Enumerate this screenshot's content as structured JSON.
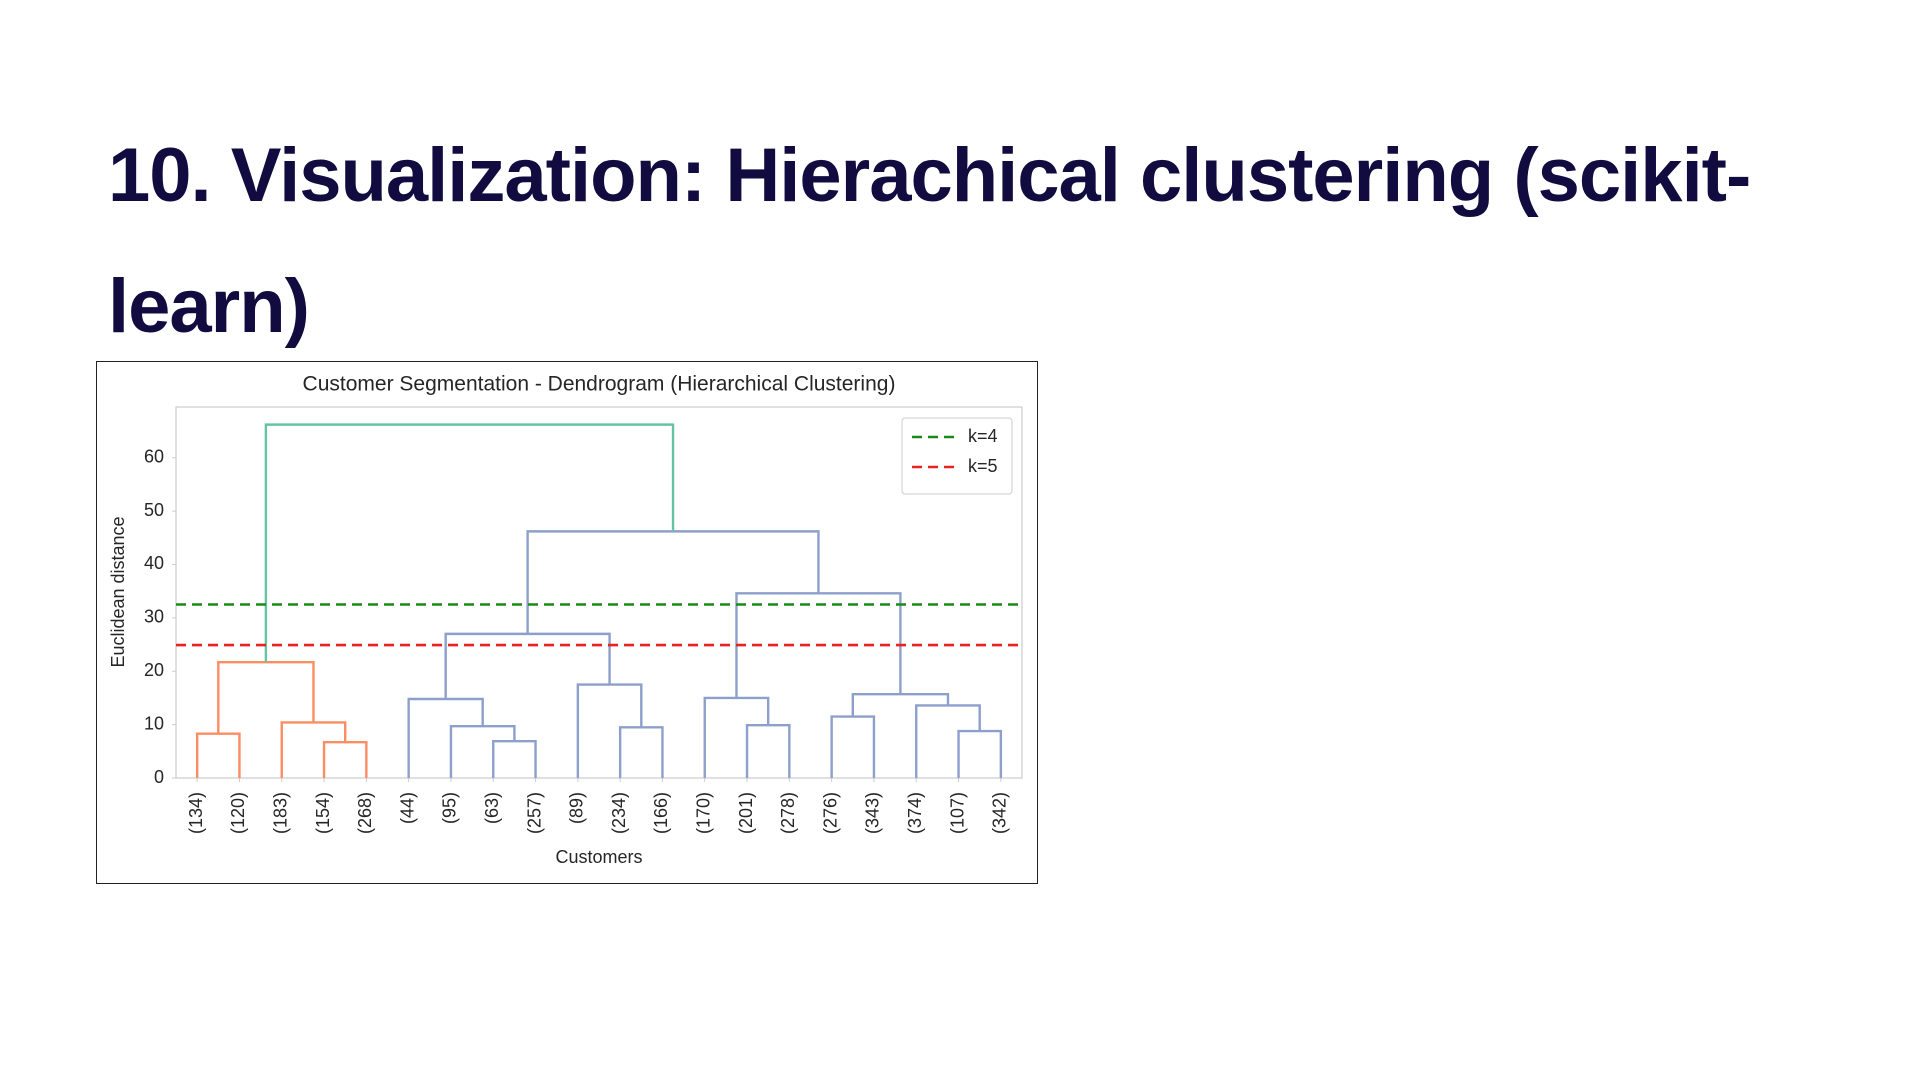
{
  "title": "10. Visualization: Hierachical clustering (scikit-learn)",
  "chart_data": {
    "type": "dendrogram",
    "title": "Customer Segmentation - Dendrogram (Hierarchical Clustering)",
    "x_label": "Customers",
    "y_label": "Euclidean distance",
    "ylim": [
      0,
      69.5
    ],
    "yticks": [
      0,
      10,
      20,
      30,
      40,
      50,
      60
    ],
    "legend": "upper right",
    "thresholds": [
      {
        "name": "k=4",
        "value": 32.5,
        "color": "#1a8a1a"
      },
      {
        "name": "k=5",
        "value": 24.9,
        "color": "#e8221f"
      }
    ],
    "tree": {
      "height": 66.2,
      "color": "#66c2a5",
      "children": [
        {
          "height": 21.7,
          "color": "#fc8d62",
          "children": [
            {
              "height": 8.3,
              "color": "#fc8d62",
              "children": [
                "(134)",
                "(120)"
              ]
            },
            {
              "height": 10.4,
              "color": "#fc8d62",
              "children": [
                "(183)",
                {
                  "height": 6.7,
                  "color": "#fc8d62",
                  "children": [
                    "(154)",
                    "(268)"
                  ]
                }
              ]
            }
          ]
        },
        {
          "height": 46.2,
          "color": "#8da0cb",
          "children": [
            {
              "height": 27.0,
              "color": "#8da0cb",
              "children": [
                {
                  "height": 14.8,
                  "color": "#8da0cb",
                  "children": [
                    "(44)",
                    {
                      "height": 9.7,
                      "color": "#8da0cb",
                      "children": [
                        "(95)",
                        {
                          "height": 6.9,
                          "color": "#8da0cb",
                          "children": [
                            "(63)",
                            "(257)"
                          ]
                        }
                      ]
                    }
                  ]
                },
                {
                  "height": 17.5,
                  "color": "#8da0cb",
                  "children": [
                    "(89)",
                    {
                      "height": 9.5,
                      "color": "#8da0cb",
                      "children": [
                        "(234)",
                        "(166)"
                      ]
                    }
                  ]
                }
              ]
            },
            {
              "height": 34.6,
              "color": "#8da0cb",
              "children": [
                {
                  "height": 15.0,
                  "color": "#8da0cb",
                  "children": [
                    "(170)",
                    {
                      "height": 9.9,
                      "color": "#8da0cb",
                      "children": [
                        "(201)",
                        "(278)"
                      ]
                    }
                  ]
                },
                {
                  "height": 15.7,
                  "color": "#8da0cb",
                  "children": [
                    {
                      "height": 11.5,
                      "color": "#8da0cb",
                      "children": [
                        "(276)",
                        "(343)"
                      ]
                    },
                    {
                      "height": 13.6,
                      "color": "#8da0cb",
                      "children": [
                        "(374)",
                        {
                          "height": 8.8,
                          "color": "#8da0cb",
                          "children": [
                            "(107)",
                            "(342)"
                          ]
                        }
                      ]
                    }
                  ]
                }
              ]
            }
          ]
        }
      ]
    }
  }
}
